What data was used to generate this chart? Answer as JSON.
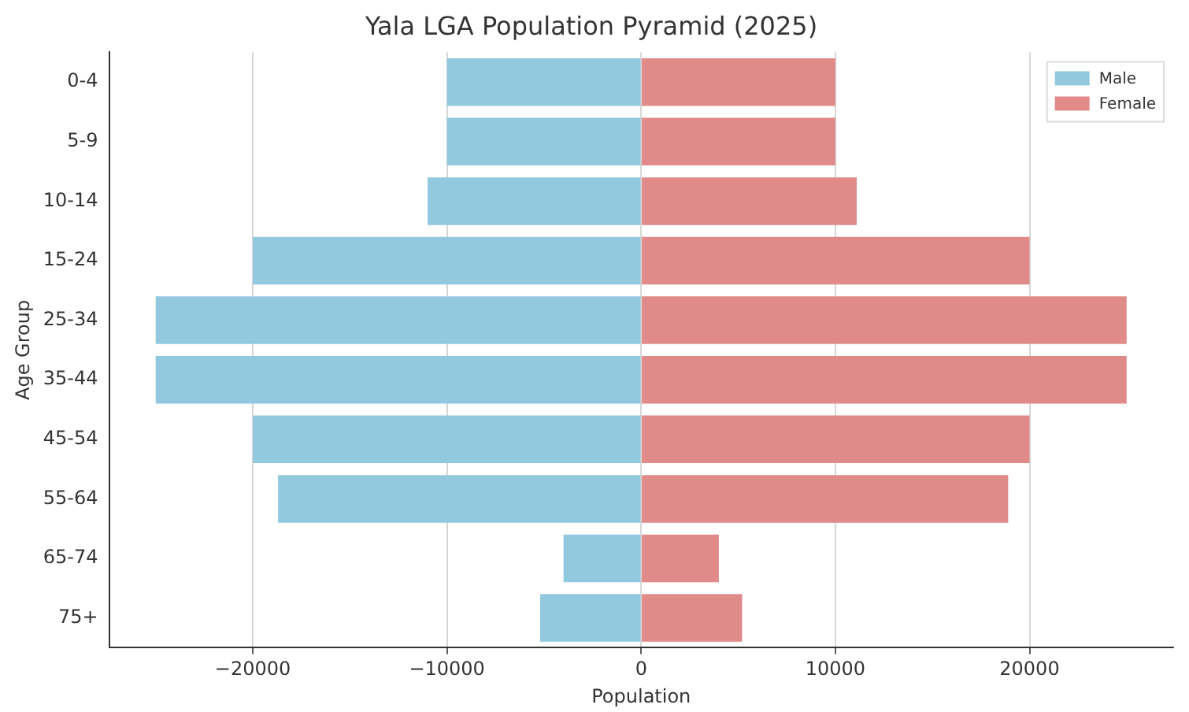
{
  "chart_data": {
    "type": "bar",
    "orientation": "horizontal",
    "stacked": true,
    "title": "Yala LGA Population Pyramid (2025)",
    "xlabel": "Population",
    "ylabel": "Age Group",
    "categories": [
      "0-4",
      "5-9",
      "10-14",
      "15-24",
      "25-34",
      "35-44",
      "45-54",
      "55-64",
      "65-74",
      "75+"
    ],
    "series": [
      {
        "name": "Male",
        "color": "#92c9df",
        "values": [
          -10000,
          -10000,
          -11000,
          -20000,
          -25000,
          -25000,
          -20000,
          -18700,
          -4000,
          -5200
        ]
      },
      {
        "name": "Female",
        "color": "#e08b8a",
        "values": [
          10000,
          10000,
          11100,
          20000,
          25000,
          25000,
          20000,
          18900,
          4000,
          5200
        ]
      }
    ],
    "xlim": [
      -27400,
      27400
    ],
    "xticks": [
      {
        "value": -20000,
        "label": "−20000"
      },
      {
        "value": -10000,
        "label": "−10000"
      },
      0,
      10000,
      20000
    ],
    "grid": "x",
    "legend": "top right"
  }
}
